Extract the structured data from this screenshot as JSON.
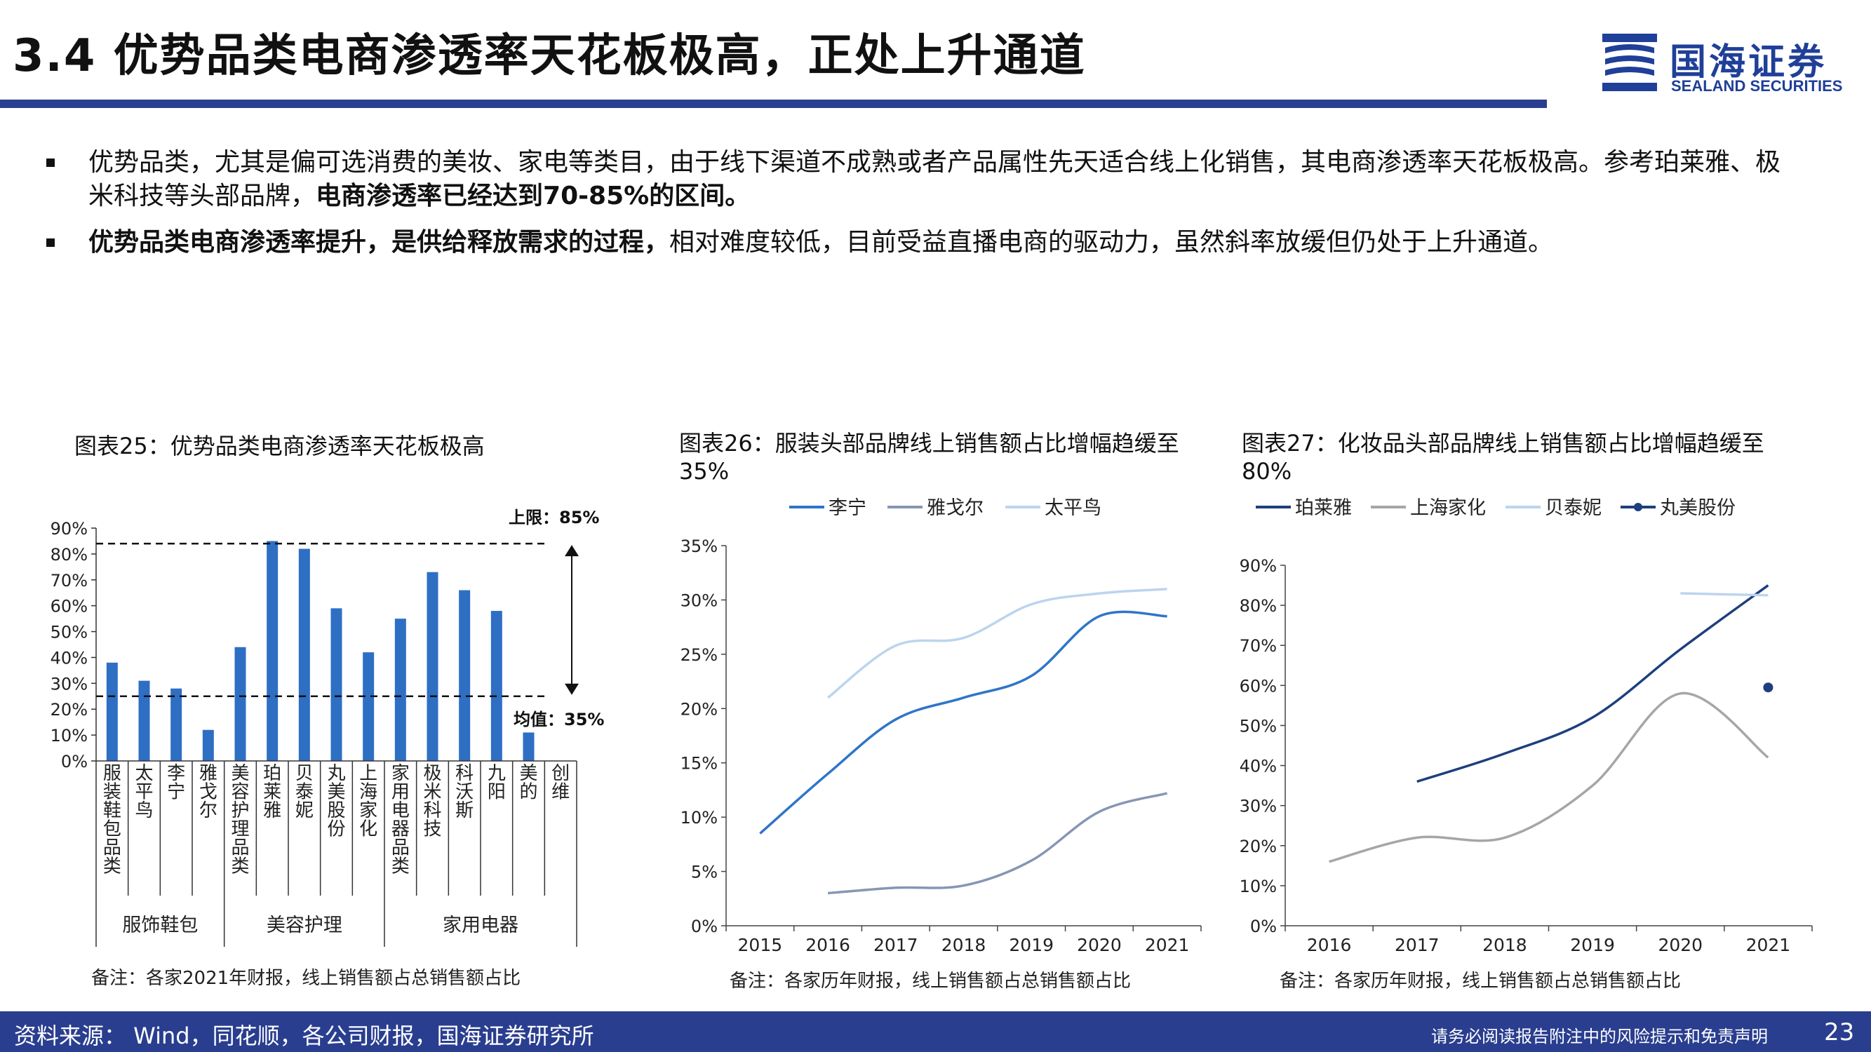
{
  "header": {
    "title": "3.4 优势品类电商渗透率天花板极高，正处上升通道"
  },
  "logo": {
    "cn": "国海证券",
    "en": "SEALAND SECURITIES",
    "color": "#1f3f98"
  },
  "bullets": [
    {
      "p1": "优势品类，尤其是偏可选消费的美妆、家电等类目，由于线下渠道不成熟或者产品属性先天适合线上化销售，其电商渗透率天花板极高。参考珀莱雅、极米科技等头部品牌，",
      "p2": "电商渗透率已经达到70-85%的区间。"
    },
    {
      "p1": "优势品类电商渗透率提升，是供给释放需求的过程，",
      "p2": "相对难度较低，目前受益直播电商的驱动力，虽然斜率放缓但仍处于上升通道。"
    }
  ],
  "charts": {
    "c25": {
      "title": "图表25：优势品类电商渗透率天花板极高",
      "note": "备注：各家2021年财报，线上销售额占总销售额占比"
    },
    "c26": {
      "title": "图表26：服装头部品牌线上销售额占比增幅趋缓至35%",
      "note": "备注：各家历年财报，线上销售额占总销售额占比"
    },
    "c27": {
      "title": "图表27：化妆品头部品牌线上销售额占比增幅趋缓至80%",
      "note": "备注：各家历年财报，线上销售额占总销售额占比"
    }
  },
  "chart_data": [
    {
      "type": "bar",
      "categories": [
        "服装鞋包品类",
        "太平鸟",
        "李宁",
        "雅戈尔",
        "美容护理品类",
        "珀莱雅",
        "贝泰妮",
        "丸美股份",
        "上海家化",
        "家用电器品类",
        "极米科技",
        "科沃斯",
        "九阳",
        "美的",
        "创维"
      ],
      "values": [
        38,
        31,
        28,
        12,
        44,
        85,
        82,
        59,
        42,
        55,
        73,
        66,
        58,
        11,
        0
      ],
      "groups": [
        {
          "label": "服饰鞋包",
          "span": 4
        },
        {
          "label": "美容护理",
          "span": 5
        },
        {
          "label": "家用电器",
          "span": 6
        }
      ],
      "ylim": [
        0,
        90
      ],
      "yticks": [
        "0%",
        "10%",
        "20%",
        "30%",
        "40%",
        "50%",
        "60%",
        "70%",
        "80%",
        "90%"
      ],
      "annotations": {
        "upper": "上限：85%",
        "mean": "均值：35%"
      },
      "color": "#2e6fc4"
    },
    {
      "type": "line",
      "x": [
        "2015",
        "2016",
        "2017",
        "2018",
        "2019",
        "2020",
        "2021"
      ],
      "ylim": [
        0,
        35
      ],
      "yticks": [
        "0%",
        "5%",
        "10%",
        "15%",
        "20%",
        "25%",
        "30%",
        "35%"
      ],
      "series": [
        {
          "name": "李宁",
          "color": "#2e75c8",
          "values": [
            8.5,
            14,
            19,
            21,
            23,
            28.5,
            28.5
          ]
        },
        {
          "name": "雅戈尔",
          "color": "#8696b4",
          "values": [
            null,
            3,
            3.5,
            3.7,
            6,
            10.5,
            12.2
          ]
        },
        {
          "name": "太平鸟",
          "color": "#bcd4ee",
          "values": [
            null,
            21,
            25.8,
            26.5,
            29.6,
            30.6,
            31
          ]
        }
      ]
    },
    {
      "type": "line",
      "x": [
        "2016",
        "2017",
        "2018",
        "2019",
        "2020",
        "2021"
      ],
      "ylim": [
        0,
        90
      ],
      "yticks": [
        "0%",
        "10%",
        "20%",
        "30%",
        "40%",
        "50%",
        "60%",
        "70%",
        "80%",
        "90%"
      ],
      "series": [
        {
          "name": "珀莱雅",
          "color": "#1d3f7e",
          "values": [
            null,
            36,
            43,
            52,
            69,
            85
          ]
        },
        {
          "name": "上海家化",
          "color": "#a6a6a6",
          "values": [
            16,
            22,
            22,
            35,
            58,
            42
          ]
        },
        {
          "name": "贝泰妮",
          "color": "#bcd4ee",
          "values": [
            null,
            null,
            null,
            null,
            83,
            82.5
          ]
        },
        {
          "name": "丸美股份",
          "color": "#1d3f7e",
          "marker": true,
          "values": [
            null,
            null,
            null,
            null,
            null,
            59.5
          ]
        }
      ]
    }
  ],
  "footer": {
    "source": "资料来源：  Wind，同花顺，各公司财报，国海证券研究所",
    "disclaimer": "请务必阅读报告附注中的风险提示和免责声明",
    "page": "23"
  }
}
